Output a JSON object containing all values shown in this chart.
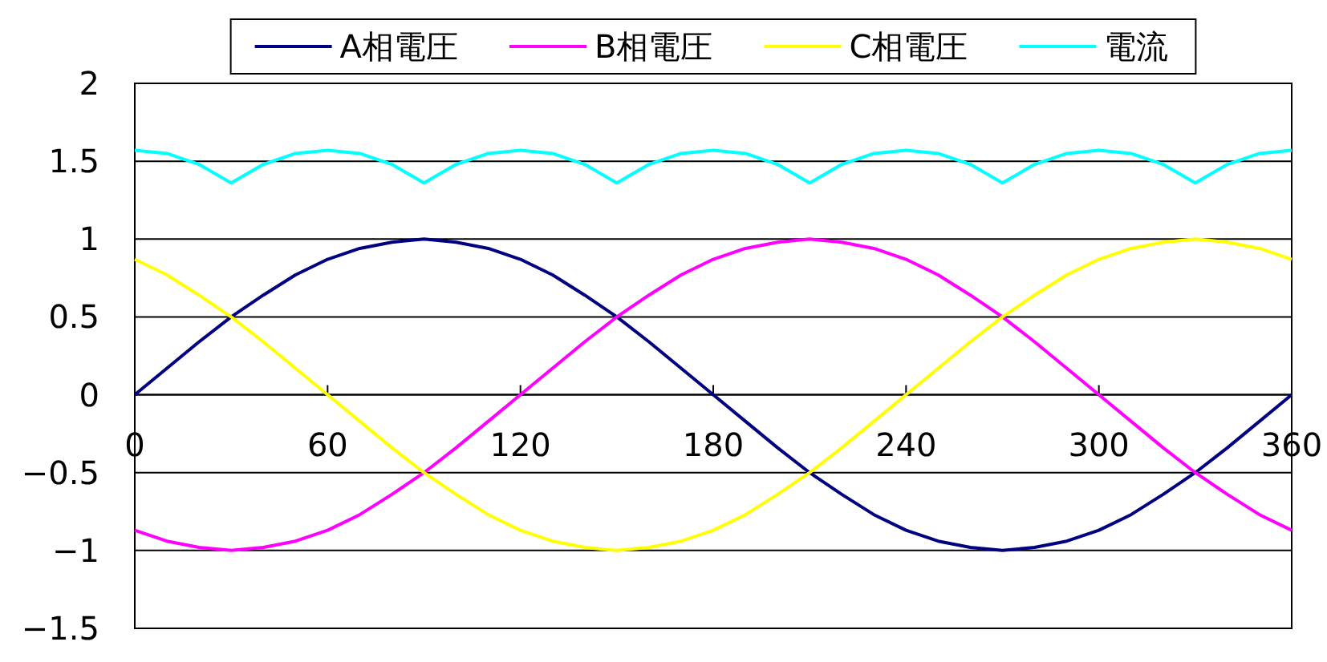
{
  "chart_data": {
    "type": "line",
    "x": [
      0,
      10,
      20,
      30,
      40,
      50,
      60,
      70,
      80,
      90,
      100,
      110,
      120,
      130,
      140,
      150,
      160,
      170,
      180,
      190,
      200,
      210,
      220,
      230,
      240,
      250,
      260,
      270,
      280,
      290,
      300,
      310,
      320,
      330,
      340,
      350,
      360
    ],
    "series": [
      {
        "name": "A相電圧",
        "color": "#000080",
        "values": [
          0,
          0.17,
          0.34,
          0.5,
          0.64,
          0.77,
          0.87,
          0.94,
          0.98,
          1,
          0.98,
          0.94,
          0.87,
          0.77,
          0.64,
          0.5,
          0.34,
          0.17,
          0,
          -0.17,
          -0.34,
          -0.5,
          -0.64,
          -0.77,
          -0.87,
          -0.94,
          -0.98,
          -1,
          -0.98,
          -0.94,
          -0.87,
          -0.77,
          -0.64,
          -0.5,
          -0.34,
          -0.17,
          0
        ]
      },
      {
        "name": "B相電圧",
        "color": "#ff00ff",
        "values": [
          -0.87,
          -0.94,
          -0.98,
          -1,
          -0.98,
          -0.94,
          -0.87,
          -0.77,
          -0.64,
          -0.5,
          -0.34,
          -0.17,
          0,
          0.17,
          0.34,
          0.5,
          0.64,
          0.77,
          0.87,
          0.94,
          0.98,
          1,
          0.98,
          0.94,
          0.87,
          0.77,
          0.64,
          0.5,
          0.34,
          0.17,
          0,
          -0.17,
          -0.34,
          -0.5,
          -0.64,
          -0.77,
          -0.87
        ]
      },
      {
        "name": "C相電圧",
        "color": "#ffff00",
        "values": [
          0.87,
          0.77,
          0.64,
          0.5,
          0.34,
          0.17,
          0,
          -0.17,
          -0.34,
          -0.5,
          -0.64,
          -0.77,
          -0.87,
          -0.94,
          -0.98,
          -1,
          -0.98,
          -0.94,
          -0.87,
          -0.77,
          -0.64,
          -0.5,
          -0.34,
          -0.17,
          0,
          0.17,
          0.34,
          0.5,
          0.64,
          0.77,
          0.87,
          0.94,
          0.98,
          1,
          0.98,
          0.94,
          0.87
        ]
      },
      {
        "name": "電流",
        "color": "#00ffff",
        "values": [
          1.57,
          1.55,
          1.48,
          1.36,
          1.48,
          1.55,
          1.57,
          1.55,
          1.48,
          1.36,
          1.48,
          1.55,
          1.57,
          1.55,
          1.48,
          1.36,
          1.48,
          1.55,
          1.57,
          1.55,
          1.48,
          1.36,
          1.48,
          1.55,
          1.57,
          1.55,
          1.48,
          1.36,
          1.48,
          1.55,
          1.57,
          1.55,
          1.48,
          1.36,
          1.48,
          1.55,
          1.57
        ]
      }
    ],
    "xlim": [
      0,
      360
    ],
    "xticks": [
      0,
      60,
      120,
      180,
      240,
      300,
      360
    ],
    "ylim": [
      -1.5,
      2
    ],
    "yticks": [
      -1.5,
      -1,
      -0.5,
      0,
      0.5,
      1,
      1.5,
      2
    ],
    "grid": "y",
    "legend": "top"
  }
}
